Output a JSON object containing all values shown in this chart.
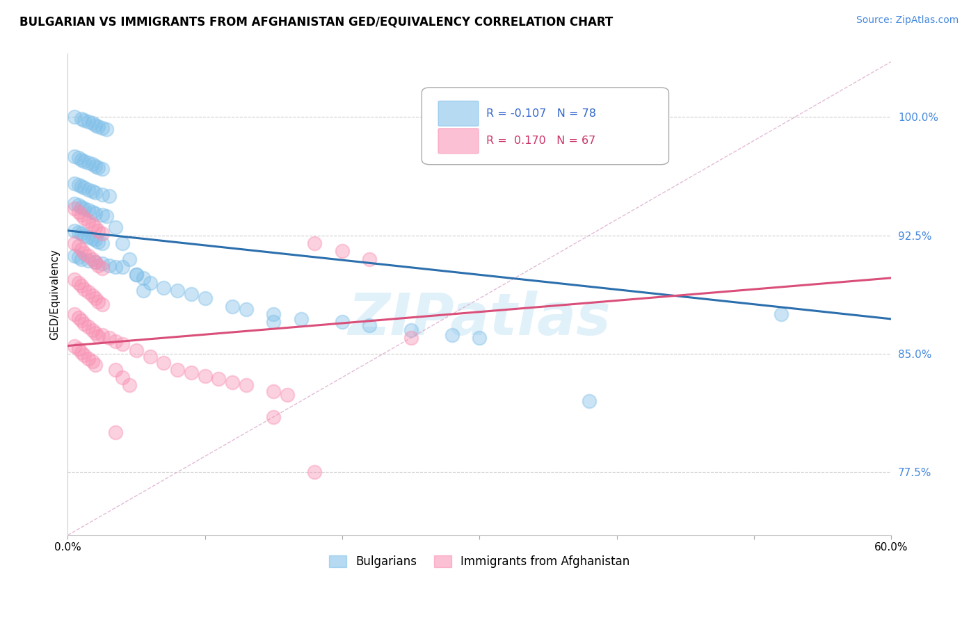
{
  "title": "BULGARIAN VS IMMIGRANTS FROM AFGHANISTAN GED/EQUIVALENCY CORRELATION CHART",
  "source": "Source: ZipAtlas.com",
  "ylabel": "GED/Equivalency",
  "ytick_labels": [
    "77.5%",
    "85.0%",
    "92.5%",
    "100.0%"
  ],
  "ytick_values": [
    0.775,
    0.85,
    0.925,
    1.0
  ],
  "xlim": [
    0.0,
    0.6
  ],
  "ylim": [
    0.735,
    1.04
  ],
  "legend_blue_r": "-0.107",
  "legend_blue_n": "78",
  "legend_pink_r": "0.170",
  "legend_pink_n": "67",
  "legend_label_blue": "Bulgarians",
  "legend_label_pink": "Immigrants from Afghanistan",
  "blue_color": "#7bbde8",
  "pink_color": "#f88db0",
  "blue_line_color": "#2c6fad",
  "pink_line_color": "#d94f7a",
  "diag_line_color": "#ddaacc",
  "blue_scatter_x": [
    0.005,
    0.01,
    0.012,
    0.015,
    0.018,
    0.02,
    0.022,
    0.025,
    0.028,
    0.005,
    0.008,
    0.01,
    0.012,
    0.015,
    0.018,
    0.02,
    0.022,
    0.025,
    0.005,
    0.008,
    0.01,
    0.012,
    0.015,
    0.018,
    0.02,
    0.025,
    0.03,
    0.005,
    0.008,
    0.01,
    0.012,
    0.015,
    0.018,
    0.02,
    0.025,
    0.028,
    0.005,
    0.008,
    0.01,
    0.012,
    0.015,
    0.018,
    0.02,
    0.022,
    0.025,
    0.005,
    0.008,
    0.01,
    0.015,
    0.02,
    0.025,
    0.03,
    0.035,
    0.04,
    0.05,
    0.055,
    0.06,
    0.07,
    0.08,
    0.09,
    0.1,
    0.12,
    0.13,
    0.15,
    0.17,
    0.2,
    0.22,
    0.25,
    0.28,
    0.3,
    0.035,
    0.04,
    0.045,
    0.05,
    0.055,
    0.15,
    0.52,
    0.38
  ],
  "blue_scatter_y": [
    1.0,
    0.999,
    0.998,
    0.997,
    0.996,
    0.995,
    0.994,
    0.993,
    0.992,
    0.975,
    0.974,
    0.973,
    0.972,
    0.971,
    0.97,
    0.969,
    0.968,
    0.967,
    0.958,
    0.957,
    0.956,
    0.955,
    0.954,
    0.953,
    0.952,
    0.951,
    0.95,
    0.945,
    0.944,
    0.943,
    0.942,
    0.941,
    0.94,
    0.939,
    0.938,
    0.937,
    0.928,
    0.927,
    0.926,
    0.925,
    0.924,
    0.923,
    0.922,
    0.921,
    0.92,
    0.912,
    0.911,
    0.91,
    0.909,
    0.908,
    0.907,
    0.906,
    0.905,
    0.905,
    0.9,
    0.898,
    0.895,
    0.892,
    0.89,
    0.888,
    0.885,
    0.88,
    0.878,
    0.875,
    0.872,
    0.87,
    0.868,
    0.865,
    0.862,
    0.86,
    0.93,
    0.92,
    0.91,
    0.9,
    0.89,
    0.87,
    0.875,
    0.82
  ],
  "pink_scatter_x": [
    0.005,
    0.008,
    0.01,
    0.012,
    0.015,
    0.018,
    0.02,
    0.022,
    0.025,
    0.005,
    0.008,
    0.01,
    0.012,
    0.015,
    0.018,
    0.02,
    0.022,
    0.025,
    0.005,
    0.008,
    0.01,
    0.012,
    0.015,
    0.018,
    0.02,
    0.022,
    0.025,
    0.005,
    0.008,
    0.01,
    0.012,
    0.015,
    0.018,
    0.02,
    0.022,
    0.005,
    0.008,
    0.01,
    0.012,
    0.015,
    0.018,
    0.02,
    0.025,
    0.03,
    0.035,
    0.04,
    0.05,
    0.06,
    0.07,
    0.08,
    0.09,
    0.1,
    0.11,
    0.12,
    0.13,
    0.15,
    0.16,
    0.035,
    0.04,
    0.045,
    0.18,
    0.2,
    0.22,
    0.035,
    0.18,
    0.25,
    0.15
  ],
  "pink_scatter_y": [
    0.942,
    0.94,
    0.938,
    0.936,
    0.934,
    0.932,
    0.93,
    0.928,
    0.926,
    0.92,
    0.918,
    0.916,
    0.914,
    0.912,
    0.91,
    0.908,
    0.906,
    0.904,
    0.897,
    0.895,
    0.893,
    0.891,
    0.889,
    0.887,
    0.885,
    0.883,
    0.881,
    0.875,
    0.873,
    0.871,
    0.869,
    0.867,
    0.865,
    0.863,
    0.861,
    0.855,
    0.853,
    0.851,
    0.849,
    0.847,
    0.845,
    0.843,
    0.862,
    0.86,
    0.858,
    0.856,
    0.852,
    0.848,
    0.844,
    0.84,
    0.838,
    0.836,
    0.834,
    0.832,
    0.83,
    0.826,
    0.824,
    0.84,
    0.835,
    0.83,
    0.92,
    0.915,
    0.91,
    0.8,
    0.775,
    0.86,
    0.81
  ],
  "blue_line_x": [
    0.0,
    0.6
  ],
  "blue_line_y": [
    0.928,
    0.872
  ],
  "pink_line_x": [
    0.0,
    0.6
  ],
  "pink_line_y": [
    0.855,
    0.898
  ],
  "diag_line_x": [
    0.0,
    0.6
  ],
  "diag_line_y": [
    0.735,
    1.035
  ]
}
